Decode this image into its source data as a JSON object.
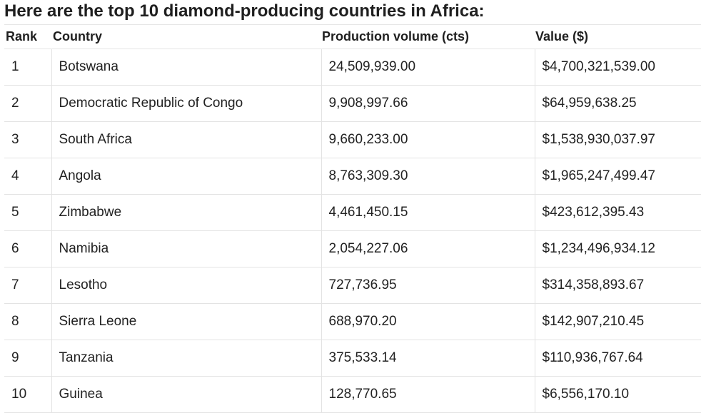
{
  "heading": "Here are the top 10 diamond-producing countries in Africa:",
  "table": {
    "headers": {
      "rank": "Rank",
      "country": "Country",
      "production": "Production volume (cts)",
      "value": "Value ($)"
    },
    "rows": [
      {
        "rank": "1",
        "country": "Botswana",
        "production": "24,509,939.00",
        "value": "$4,700,321,539.00"
      },
      {
        "rank": "2",
        "country": "Democratic Republic of Congo",
        "production": "9,908,997.66",
        "value": "$64,959,638.25"
      },
      {
        "rank": "3",
        "country": "South Africa",
        "production": "9,660,233.00",
        "value": "$1,538,930,037.97"
      },
      {
        "rank": "4",
        "country": "Angola",
        "production": "8,763,309.30",
        "value": "$1,965,247,499.47"
      },
      {
        "rank": "5",
        "country": "Zimbabwe",
        "production": "4,461,450.15",
        "value": "$423,612,395.43"
      },
      {
        "rank": "6",
        "country": "Namibia",
        "production": "2,054,227.06",
        "value": "$1,234,496,934.12"
      },
      {
        "rank": "7",
        "country": "Lesotho",
        "production": "727,736.95",
        "value": "$314,358,893.67"
      },
      {
        "rank": "8",
        "country": "Sierra Leone",
        "production": "688,970.20",
        "value": "$142,907,210.45"
      },
      {
        "rank": "9",
        "country": "Tanzania",
        "production": "375,533.14",
        "value": "$110,936,767.64"
      },
      {
        "rank": "10",
        "country": "Guinea",
        "production": "128,770.65",
        "value": "$6,556,170.10"
      }
    ]
  }
}
